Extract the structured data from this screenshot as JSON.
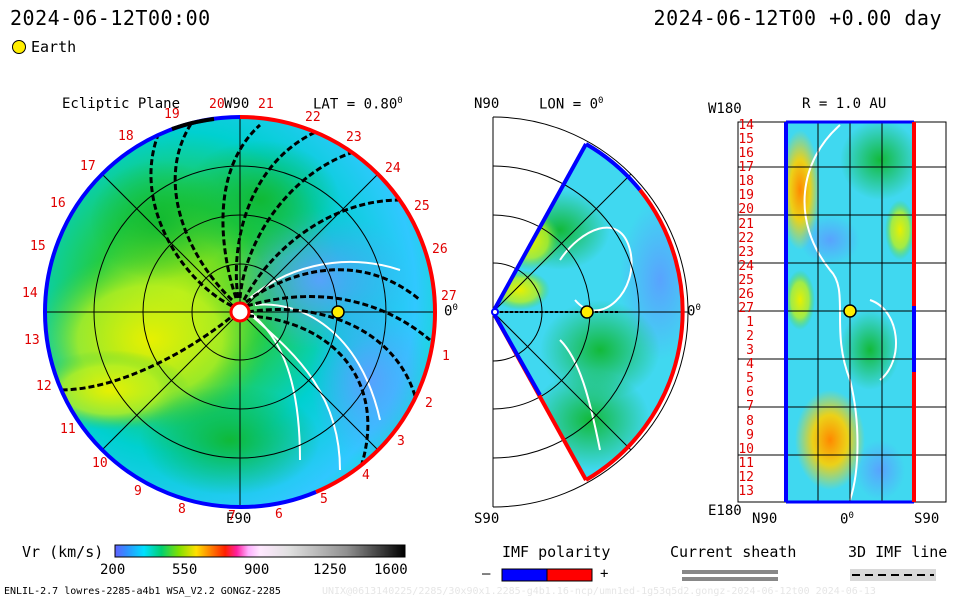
{
  "header": {
    "datetime_left": "2024-06-12T00:00",
    "datetime_right": "2024-06-12T00 +0.00 day"
  },
  "legend": {
    "earth_label": "Earth"
  },
  "panel_ecliptic": {
    "title": "Ecliptic Plane",
    "top_label": "W90",
    "lat_label": "LAT = 0.80",
    "lat_sup": "0",
    "right_label": "0",
    "right_sup": "0",
    "bottom_label": "E90",
    "numbers": [
      "19",
      "20",
      "21",
      "22",
      "23",
      "24",
      "25",
      "26",
      "27",
      "1",
      "2",
      "3",
      "4",
      "5",
      "6",
      "7",
      "8",
      "9",
      "10",
      "11",
      "12",
      "13",
      "14",
      "15",
      "16",
      "17",
      "18"
    ]
  },
  "panel_meridional": {
    "top_left": "N90",
    "lon_label": "LON = 0",
    "lon_sup": "0",
    "right_label": "0",
    "right_sup": "0",
    "bottom_left": "S90"
  },
  "panel_radial": {
    "top_left": "W180",
    "r_label": "R = 1.0 AU",
    "numbers": [
      "14",
      "15",
      "16",
      "17",
      "18",
      "19",
      "20",
      "21",
      "22",
      "23",
      "24",
      "25",
      "26",
      "27",
      "1",
      "2",
      "3",
      "4",
      "5",
      "6",
      "7",
      "8",
      "9",
      "10",
      "11",
      "12",
      "13"
    ],
    "bottom_left": "E180",
    "axis_left": "N90",
    "axis_mid": "0",
    "axis_mid_sup": "0",
    "axis_right": "S90"
  },
  "colorbar": {
    "label": "Vr (km/s)",
    "ticks": [
      "200",
      "550",
      "900",
      "1250",
      "1600"
    ]
  },
  "imf_polarity": {
    "title": "IMF polarity",
    "minus": "–",
    "plus": "+",
    "negative_color": "#0000ff",
    "positive_color": "#ff0000"
  },
  "current_sheath": {
    "title": "Current sheath"
  },
  "imf_line": {
    "title": "3D IMF line"
  },
  "footer": {
    "left": "ENLIL-2.7 lowres-2285-a4b1 WSA_V2.2 GONGZ-2285",
    "right": "UNIX@0613140225/2285/30x90x1.2285-g4b1.16-ncp/umn1ed-1g53q5d2.gongz-2024-06-12t00 2024-06-13"
  }
}
